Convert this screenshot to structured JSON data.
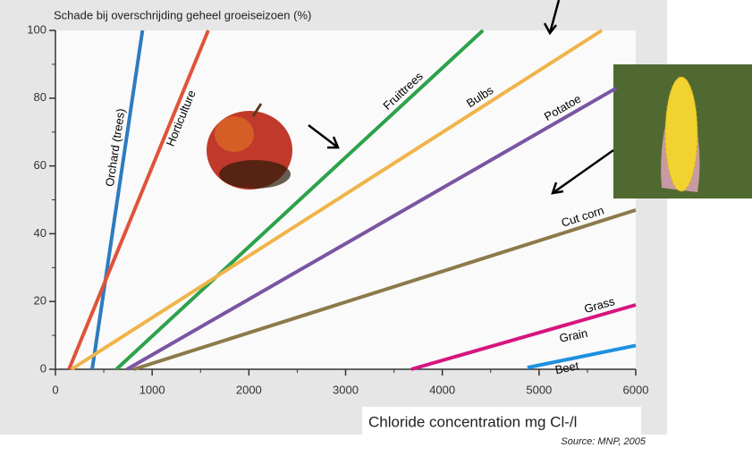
{
  "chart_data": {
    "type": "line",
    "title": "Schade bij overschrijding geheel groeiseizoen (%)",
    "x_label": "Chloride concentration mg Cl-/l",
    "source": "Source: MNP, 2005",
    "xlim": [
      0,
      6000
    ],
    "ylim": [
      0,
      100
    ],
    "xticks": [
      0,
      1000,
      2000,
      3000,
      4000,
      5000,
      6000
    ],
    "yticks": [
      0,
      20,
      40,
      60,
      80,
      100
    ],
    "annotations": [
      "Grain"
    ],
    "series": [
      {
        "name": "Orchard (trees)",
        "color": "#2e7bbf",
        "x": [
          380,
          900
        ],
        "values": [
          0,
          100
        ]
      },
      {
        "name": "Horticulture",
        "color": "#e0533a",
        "x": [
          140,
          1580
        ],
        "values": [
          0,
          100
        ]
      },
      {
        "name": "Fruittrees",
        "color": "#2ca24a",
        "x": [
          630,
          4420
        ],
        "values": [
          0,
          100
        ]
      },
      {
        "name": "Bulbs",
        "color": "#f0b44a",
        "x": [
          165,
          5650
        ],
        "values": [
          0,
          100
        ]
      },
      {
        "name": "Potatoe",
        "color": "#7a55a3",
        "x": [
          740,
          5800
        ],
        "values": [
          0,
          83
        ]
      },
      {
        "name": "Cut corn",
        "color": "#8c7a4a",
        "x": [
          810,
          6000
        ],
        "values": [
          0,
          47
        ]
      },
      {
        "name": "Grass",
        "color": "#d6157f",
        "x": [
          3680,
          6000
        ],
        "values": [
          0,
          19
        ]
      },
      {
        "name": "Beet",
        "color": "#1e90e0",
        "x": [
          4880,
          6000
        ],
        "values": [
          0.5,
          7
        ]
      }
    ]
  }
}
